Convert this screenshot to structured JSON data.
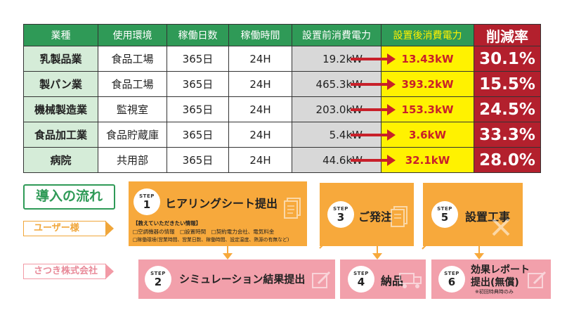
{
  "table": {
    "headers": {
      "industry": "業種",
      "environment": "使用環境",
      "days": "稼働日数",
      "hours": "稼働時間",
      "before": "設置前消費電力",
      "after": "設置後消費電力",
      "reduction": "削減率"
    },
    "rows": [
      {
        "industry": "乳製品業",
        "environment": "食品工場",
        "days": "365日",
        "hours": "24H",
        "before": "19.2kW",
        "after": "13.43kW",
        "reduction": "30.1%"
      },
      {
        "industry": "製パン業",
        "environment": "食品工場",
        "days": "365日",
        "hours": "24H",
        "before": "465.3kW",
        "after": "393.2kW",
        "reduction": "15.5%"
      },
      {
        "industry": "機械製造業",
        "environment": "監視室",
        "days": "365日",
        "hours": "24H",
        "before": "203.0kW",
        "after": "153.3kW",
        "reduction": "24.5%"
      },
      {
        "industry": "食品加工業",
        "environment": "食品貯蔵庫",
        "days": "365日",
        "hours": "24H",
        "before": "5.4kW",
        "after": "3.6kW",
        "reduction": "33.3%"
      },
      {
        "industry": "病院",
        "environment": "共用部",
        "days": "365日",
        "hours": "24H",
        "before": "44.6kW",
        "after": "32.1kW",
        "reduction": "28.0%"
      }
    ],
    "colors": {
      "header_green": "#2f9a57",
      "industry_bg": "#d5ecd8",
      "before_bg": "#d8d8d8",
      "after_bg": "#fff200",
      "arrow_red": "#c8202a",
      "reduction_red": "#b3202d"
    }
  },
  "flow": {
    "title": "導入の流れ",
    "lane_user": "ユーザー様",
    "lane_company": "さつき株式会社",
    "step_word": "STEP",
    "steps": [
      {
        "num": "1",
        "title": "ヒアリングシート提出",
        "icon": "document-icon",
        "info_title": "【教えていただきたい情報】",
        "info_line1": "□空調機器の情報　□設置時間　□契約電力会社、電気料金",
        "info_line2": "□稼働環境(営業時間、営業日数、稼働時間、設定温度、熱源の有無など)"
      },
      {
        "num": "2",
        "title": "シミュレーション結果提出",
        "icon": "pencil-icon"
      },
      {
        "num": "3",
        "title": "ご発注",
        "icon": "document-icon"
      },
      {
        "num": "4",
        "title": "納品",
        "icon": "truck-icon"
      },
      {
        "num": "5",
        "title": "設置工事",
        "icon": "tools-icon"
      },
      {
        "num": "6",
        "title_line1": "効果レポート",
        "title_line2": "提出(無償)",
        "note": "※初回特典時のみ",
        "icon": "pencil-icon"
      }
    ],
    "colors": {
      "orange": "#f7a93c",
      "pink": "#f2a0ab"
    }
  }
}
